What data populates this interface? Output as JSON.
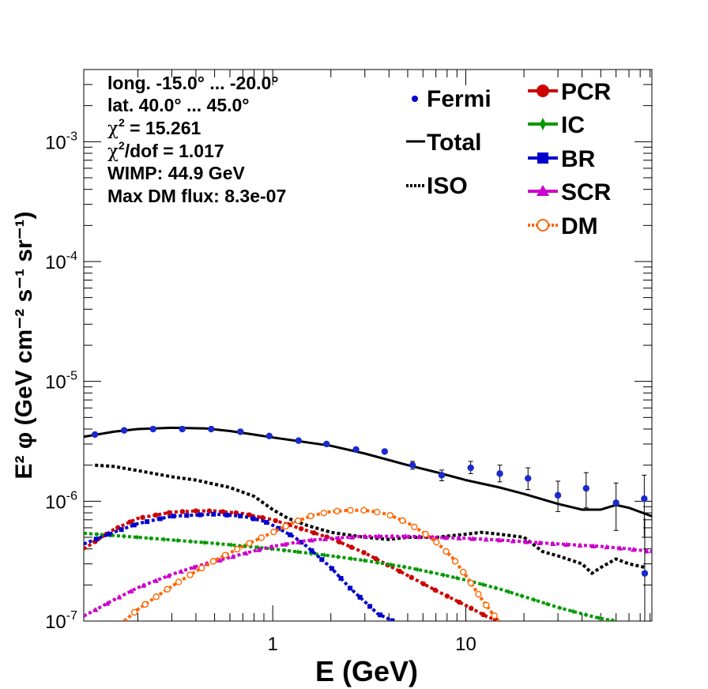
{
  "chart_data": {
    "type": "line",
    "xscale": "log",
    "yscale": "log",
    "xlim": [
      0.105,
      92
    ],
    "ylim": [
      1e-07,
      0.004
    ],
    "xlabel": "E (GeV)",
    "ylabel": "E² φ (GeV cm⁻² s⁻¹ sr⁻¹)",
    "x_ticks": [
      {
        "v": 1,
        "label": "1"
      },
      {
        "v": 10,
        "label": "10"
      }
    ],
    "y_ticks": [
      {
        "v": 1e-07,
        "base": "10",
        "exp": "-7"
      },
      {
        "v": 1e-06,
        "base": "10",
        "exp": "-6"
      },
      {
        "v": 1e-05,
        "base": "10",
        "exp": "-5"
      },
      {
        "v": 0.0001,
        "base": "10",
        "exp": "-4"
      },
      {
        "v": 0.001,
        "base": "10",
        "exp": "-3"
      }
    ],
    "info": {
      "longitude": "long. -15.0° ... -20.0°",
      "latitude": "lat. 40.0° ... 45.0°",
      "chi2_value": " = 15.261",
      "chi2dof_value": "/dof = 1.017",
      "wimp": "WIMP: 44.9 GeV",
      "max_dm_flux": "Max DM flux: 8.3e-07"
    },
    "legend_left": [
      {
        "name": "Fermi",
        "color": "#0000cc",
        "style": "point"
      },
      {
        "name": "Total",
        "color": "#000000",
        "style": "solid"
      },
      {
        "name": "ISO",
        "color": "#000000",
        "style": "dotted"
      }
    ],
    "legend_right": [
      {
        "name": "PCR",
        "color": "#cc0000",
        "style": "circle"
      },
      {
        "name": "IC",
        "color": "#009900",
        "style": "star"
      },
      {
        "name": "BR",
        "color": "#0000cc",
        "style": "square"
      },
      {
        "name": "SCR",
        "color": "#cc00cc",
        "style": "triangle"
      },
      {
        "name": "DM",
        "color": "#ff6600",
        "style": "open-circle"
      }
    ],
    "fermi": {
      "x": [
        0.12,
        0.17,
        0.24,
        0.34,
        0.48,
        0.68,
        0.96,
        1.36,
        1.9,
        2.7,
        3.8,
        5.3,
        7.5,
        10.6,
        15,
        21,
        30,
        42,
        60,
        84
      ],
      "y": [
        3.6e-06,
        3.9e-06,
        4e-06,
        4e-06,
        4e-06,
        3.8e-06,
        3.5e-06,
        3.2e-06,
        3e-06,
        2.7e-06,
        2.6e-06,
        2e-06,
        1.65e-06,
        1.9e-06,
        1.7e-06,
        1.55e-06,
        1.12e-06,
        1.28e-06,
        9.7e-07,
        1.05e-06
      ],
      "err_low": [
        0,
        0,
        0,
        0,
        0,
        0,
        0,
        0,
        0,
        0,
        0,
        1.5e-07,
        1.7e-07,
        2e-07,
        2.5e-07,
        3e-07,
        3e-07,
        4e-07,
        4e-07,
        5.5e-07
      ],
      "err_high": [
        0,
        0,
        0,
        0,
        0,
        0,
        0,
        0,
        0,
        0,
        0,
        1.5e-07,
        1.7e-07,
        2.5e-07,
        3e-07,
        3.5e-07,
        3.5e-07,
        4.5e-07,
        4.5e-07,
        6e-07
      ]
    },
    "extra_point": {
      "x": 84.5,
      "y": 2.5e-07
    },
    "series": [
      {
        "name": "Total",
        "color": "#000000",
        "dash": "",
        "marker": "none",
        "x": [
          0.105,
          0.15,
          0.2,
          0.3,
          0.45,
          0.6,
          0.8,
          1.0,
          1.5,
          2.0,
          3.0,
          5.0,
          7.0,
          10,
          15,
          20,
          30,
          40,
          50,
          60,
          70,
          92
        ],
        "y": [
          3.45e-06,
          3.8e-06,
          4e-06,
          4.1e-06,
          4.05e-06,
          3.85e-06,
          3.6e-06,
          3.4e-06,
          3.1e-06,
          2.9e-06,
          2.5e-06,
          2e-06,
          1.75e-06,
          1.5e-06,
          1.3e-06,
          1.15e-06,
          9.5e-07,
          8.5e-07,
          8.5e-07,
          9.3e-07,
          8.8e-07,
          7.5e-07
        ]
      },
      {
        "name": "ISO",
        "color": "#000000",
        "dash": "4,3",
        "marker": "none",
        "x": [
          0.12,
          0.15,
          0.2,
          0.3,
          0.4,
          0.6,
          0.8,
          1.0,
          1.2,
          1.5,
          2.0,
          3.0,
          4.0,
          5.0,
          7.0,
          10,
          12,
          15,
          20,
          25,
          30,
          40,
          45,
          50,
          60,
          70,
          85
        ],
        "y": [
          2e-06,
          1.95e-06,
          1.8e-06,
          1.6e-06,
          1.5e-06,
          1.3e-06,
          1.1e-06,
          8.5e-07,
          7.2e-07,
          6.3e-07,
          5.5e-07,
          5e-07,
          4.8e-07,
          5e-07,
          5e-07,
          5.3e-07,
          5.5e-07,
          5.3e-07,
          5e-07,
          3.8e-07,
          3.5e-07,
          3e-07,
          2.5e-07,
          2.8e-07,
          3.3e-07,
          3e-07,
          2.8e-07
        ]
      },
      {
        "name": "PCR",
        "color": "#cc0000",
        "dash": "4,3",
        "marker": "circle",
        "x": [
          0.105,
          0.15,
          0.2,
          0.3,
          0.4,
          0.5,
          0.7,
          1.0,
          1.5,
          2.0,
          3.0,
          4.0,
          5.0,
          7.0,
          10,
          13,
          15
        ],
        "y": [
          4e-07,
          5.8e-07,
          7.2e-07,
          8.1e-07,
          8.3e-07,
          8.3e-07,
          7.9e-07,
          7e-07,
          5.7e-07,
          4.9e-07,
          3.7e-07,
          2.9e-07,
          2.4e-07,
          1.8e-07,
          1.35e-07,
          1.08e-07,
          1e-07
        ]
      },
      {
        "name": "IC",
        "color": "#009900",
        "dash": "4,3",
        "marker": "star",
        "x": [
          0.105,
          0.2,
          0.3,
          0.5,
          0.8,
          1.0,
          1.5,
          2.0,
          3.0,
          5.0,
          7.0,
          10,
          15,
          20,
          30,
          40,
          50,
          60
        ],
        "y": [
          5.4e-07,
          5e-07,
          4.75e-07,
          4.45e-07,
          4.15e-07,
          4e-07,
          3.7e-07,
          3.5e-07,
          3.2e-07,
          2.8e-07,
          2.5e-07,
          2.2e-07,
          1.85e-07,
          1.6e-07,
          1.3e-07,
          1.15e-07,
          1.05e-07,
          1e-07
        ]
      },
      {
        "name": "BR",
        "color": "#0000cc",
        "dash": "4,3",
        "marker": "square",
        "x": [
          0.105,
          0.15,
          0.2,
          0.3,
          0.5,
          0.7,
          0.9,
          1.0,
          1.3,
          1.5,
          2.0,
          2.5,
          3.0,
          3.5,
          4.2
        ],
        "y": [
          4.4e-07,
          5.5e-07,
          6.5e-07,
          7.5e-07,
          7.8e-07,
          7.5e-07,
          6.8e-07,
          6.3e-07,
          5e-07,
          4.2e-07,
          2.8e-07,
          1.9e-07,
          1.45e-07,
          1.15e-07,
          1e-07
        ]
      },
      {
        "name": "SCR",
        "color": "#cc00cc",
        "dash": "4,3",
        "marker": "triangle",
        "x": [
          0.105,
          0.15,
          0.2,
          0.3,
          0.4,
          0.6,
          0.8,
          1.0,
          1.5,
          2.0,
          3.0,
          5.0,
          7.0,
          10,
          15,
          20,
          30,
          50,
          70,
          92
        ],
        "y": [
          1.1e-07,
          1.5e-07,
          1.9e-07,
          2.45e-07,
          2.85e-07,
          3.4e-07,
          3.85e-07,
          4.2e-07,
          4.7e-07,
          4.9e-07,
          5.1e-07,
          5.1e-07,
          5e-07,
          4.9e-07,
          4.75e-07,
          4.6e-07,
          4.4e-07,
          4.2e-07,
          4e-07,
          3.8e-07
        ]
      },
      {
        "name": "DM",
        "color": "#ff6600",
        "dash": "4,3",
        "marker": "open-circle",
        "x": [
          0.17,
          0.2,
          0.25,
          0.3,
          0.4,
          0.5,
          0.7,
          1.0,
          1.3,
          1.6,
          2.0,
          2.5,
          3.0,
          3.5,
          4.0,
          5.0,
          6.0,
          7.0,
          8.5,
          10,
          12,
          13.5,
          14.8
        ],
        "y": [
          1e-07,
          1.25e-07,
          1.6e-07,
          1.95e-07,
          2.6e-07,
          3.2e-07,
          4.2e-07,
          5.5e-07,
          6.7e-07,
          7.6e-07,
          8.2e-07,
          8.4e-07,
          8.4e-07,
          8.1e-07,
          7.7e-07,
          6.6e-07,
          5.5e-07,
          4.6e-07,
          3.4e-07,
          2.4e-07,
          1.55e-07,
          1.2e-07,
          1e-07
        ]
      }
    ]
  }
}
